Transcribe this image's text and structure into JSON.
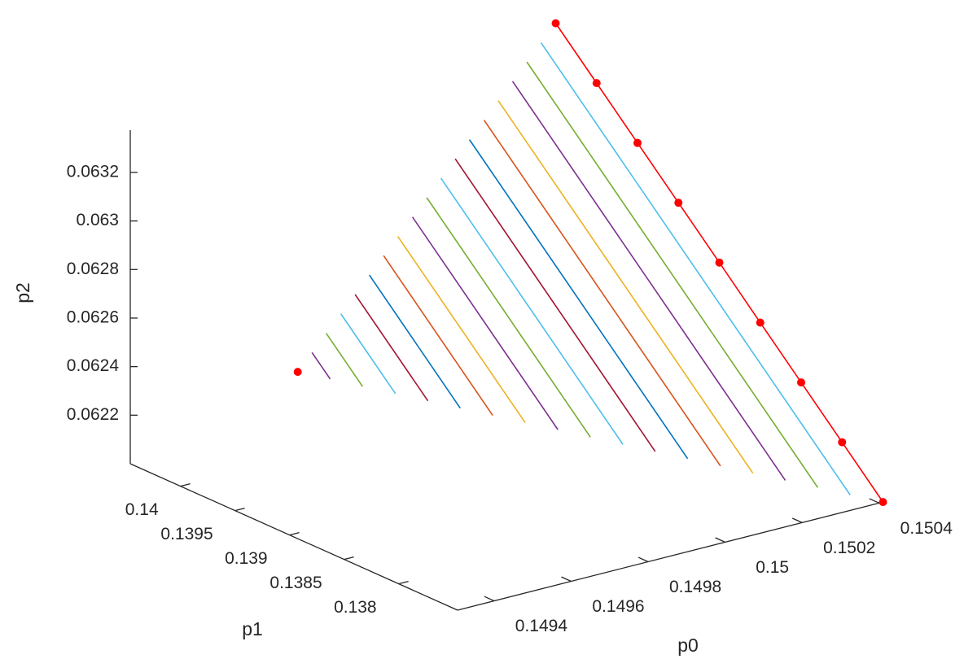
{
  "chart_data": {
    "type": "line3d",
    "xlabel": "p0",
    "ylabel": "p1",
    "zlabel": "p2",
    "xlim": [
      0.149305,
      0.150411
    ],
    "ylim": [
      0.13746,
      0.14046
    ],
    "zlim": [
      0.062,
      0.063374
    ],
    "xticks": [
      0.1494,
      0.1496,
      0.1498,
      0.15,
      0.1502,
      0.1504
    ],
    "yticks": [
      0.138,
      0.1385,
      0.139,
      0.1395,
      0.14
    ],
    "zticks": [
      0.0622,
      0.0624,
      0.0626,
      0.0628,
      0.063,
      0.0632
    ],
    "series": [
      {
        "color": "#ff0000",
        "marker": "o",
        "x": [
          0.14974
        ],
        "y": [
          0.14046
        ],
        "z": [
          0.062203
        ]
      },
      {
        "color": "#7E2F8E",
        "x": [
          0.149777,
          0.149777
        ],
        "y": [
          0.14046,
          0.140293
        ],
        "z": [
          0.062268,
          0.062192
        ]
      },
      {
        "color": "#77AC30",
        "x": [
          0.149814,
          0.149814
        ],
        "y": [
          0.14046,
          0.140127
        ],
        "z": [
          0.062332,
          0.06218
        ]
      },
      {
        "color": "#4DBEEE",
        "x": [
          0.149852,
          0.149852
        ],
        "y": [
          0.14046,
          0.13996
        ],
        "z": [
          0.062397,
          0.062169
        ]
      },
      {
        "color": "#A2142F",
        "x": [
          0.149889,
          0.149889
        ],
        "y": [
          0.14046,
          0.139793
        ],
        "z": [
          0.062462,
          0.062158
        ]
      },
      {
        "color": "#0072BD",
        "x": [
          0.149926,
          0.149926
        ],
        "y": [
          0.14046,
          0.139627
        ],
        "z": [
          0.062527,
          0.062146
        ]
      },
      {
        "color": "#D95319",
        "x": [
          0.149963,
          0.149963
        ],
        "y": [
          0.14046,
          0.13946
        ],
        "z": [
          0.062592,
          0.062135
        ]
      },
      {
        "color": "#EDB120",
        "x": [
          0.15,
          0.15
        ],
        "y": [
          0.14046,
          0.139293
        ],
        "z": [
          0.062656,
          0.062124
        ]
      },
      {
        "color": "#7E2F8E",
        "x": [
          0.150038,
          0.150038
        ],
        "y": [
          0.14046,
          0.139127
        ],
        "z": [
          0.062721,
          0.062113
        ]
      },
      {
        "color": "#77AC30",
        "x": [
          0.150075,
          0.150075
        ],
        "y": [
          0.14046,
          0.13896
        ],
        "z": [
          0.062786,
          0.062101
        ]
      },
      {
        "color": "#4DBEEE",
        "x": [
          0.150112,
          0.150112
        ],
        "y": [
          0.14046,
          0.138793
        ],
        "z": [
          0.062851,
          0.06209
        ]
      },
      {
        "color": "#A2142F",
        "x": [
          0.150149,
          0.150149
        ],
        "y": [
          0.14046,
          0.138627
        ],
        "z": [
          0.062916,
          0.062079
        ]
      },
      {
        "color": "#0072BD",
        "x": [
          0.150186,
          0.150186
        ],
        "y": [
          0.14046,
          0.13846
        ],
        "z": [
          0.06298,
          0.062068
        ]
      },
      {
        "color": "#D95319",
        "x": [
          0.150224,
          0.150224
        ],
        "y": [
          0.14046,
          0.138293
        ],
        "z": [
          0.063045,
          0.062056
        ]
      },
      {
        "color": "#EDB120",
        "x": [
          0.150261,
          0.150261
        ],
        "y": [
          0.14046,
          0.138127
        ],
        "z": [
          0.06311,
          0.062045
        ]
      },
      {
        "color": "#7E2F8E",
        "x": [
          0.150298,
          0.150298
        ],
        "y": [
          0.14046,
          0.13796
        ],
        "z": [
          0.063175,
          0.062034
        ]
      },
      {
        "color": "#77AC30",
        "x": [
          0.150335,
          0.150335
        ],
        "y": [
          0.14046,
          0.137793
        ],
        "z": [
          0.06324,
          0.062023
        ]
      },
      {
        "color": "#4DBEEE",
        "x": [
          0.150372,
          0.150372
        ],
        "y": [
          0.14046,
          0.137627
        ],
        "z": [
          0.063304,
          0.062011
        ]
      },
      {
        "color": "#ff0000",
        "marker": "o",
        "x": [
          0.15041,
          0.15041,
          0.15041,
          0.15041,
          0.15041,
          0.15041,
          0.15041,
          0.15041,
          0.15041
        ],
        "y": [
          0.14046,
          0.140085,
          0.13971,
          0.139335,
          0.13896,
          0.138585,
          0.13821,
          0.137835,
          0.13746
        ],
        "z": [
          0.063369,
          0.063198,
          0.063027,
          0.062856,
          0.062685,
          0.062513,
          0.062342,
          0.062171,
          0.062
        ]
      }
    ]
  }
}
